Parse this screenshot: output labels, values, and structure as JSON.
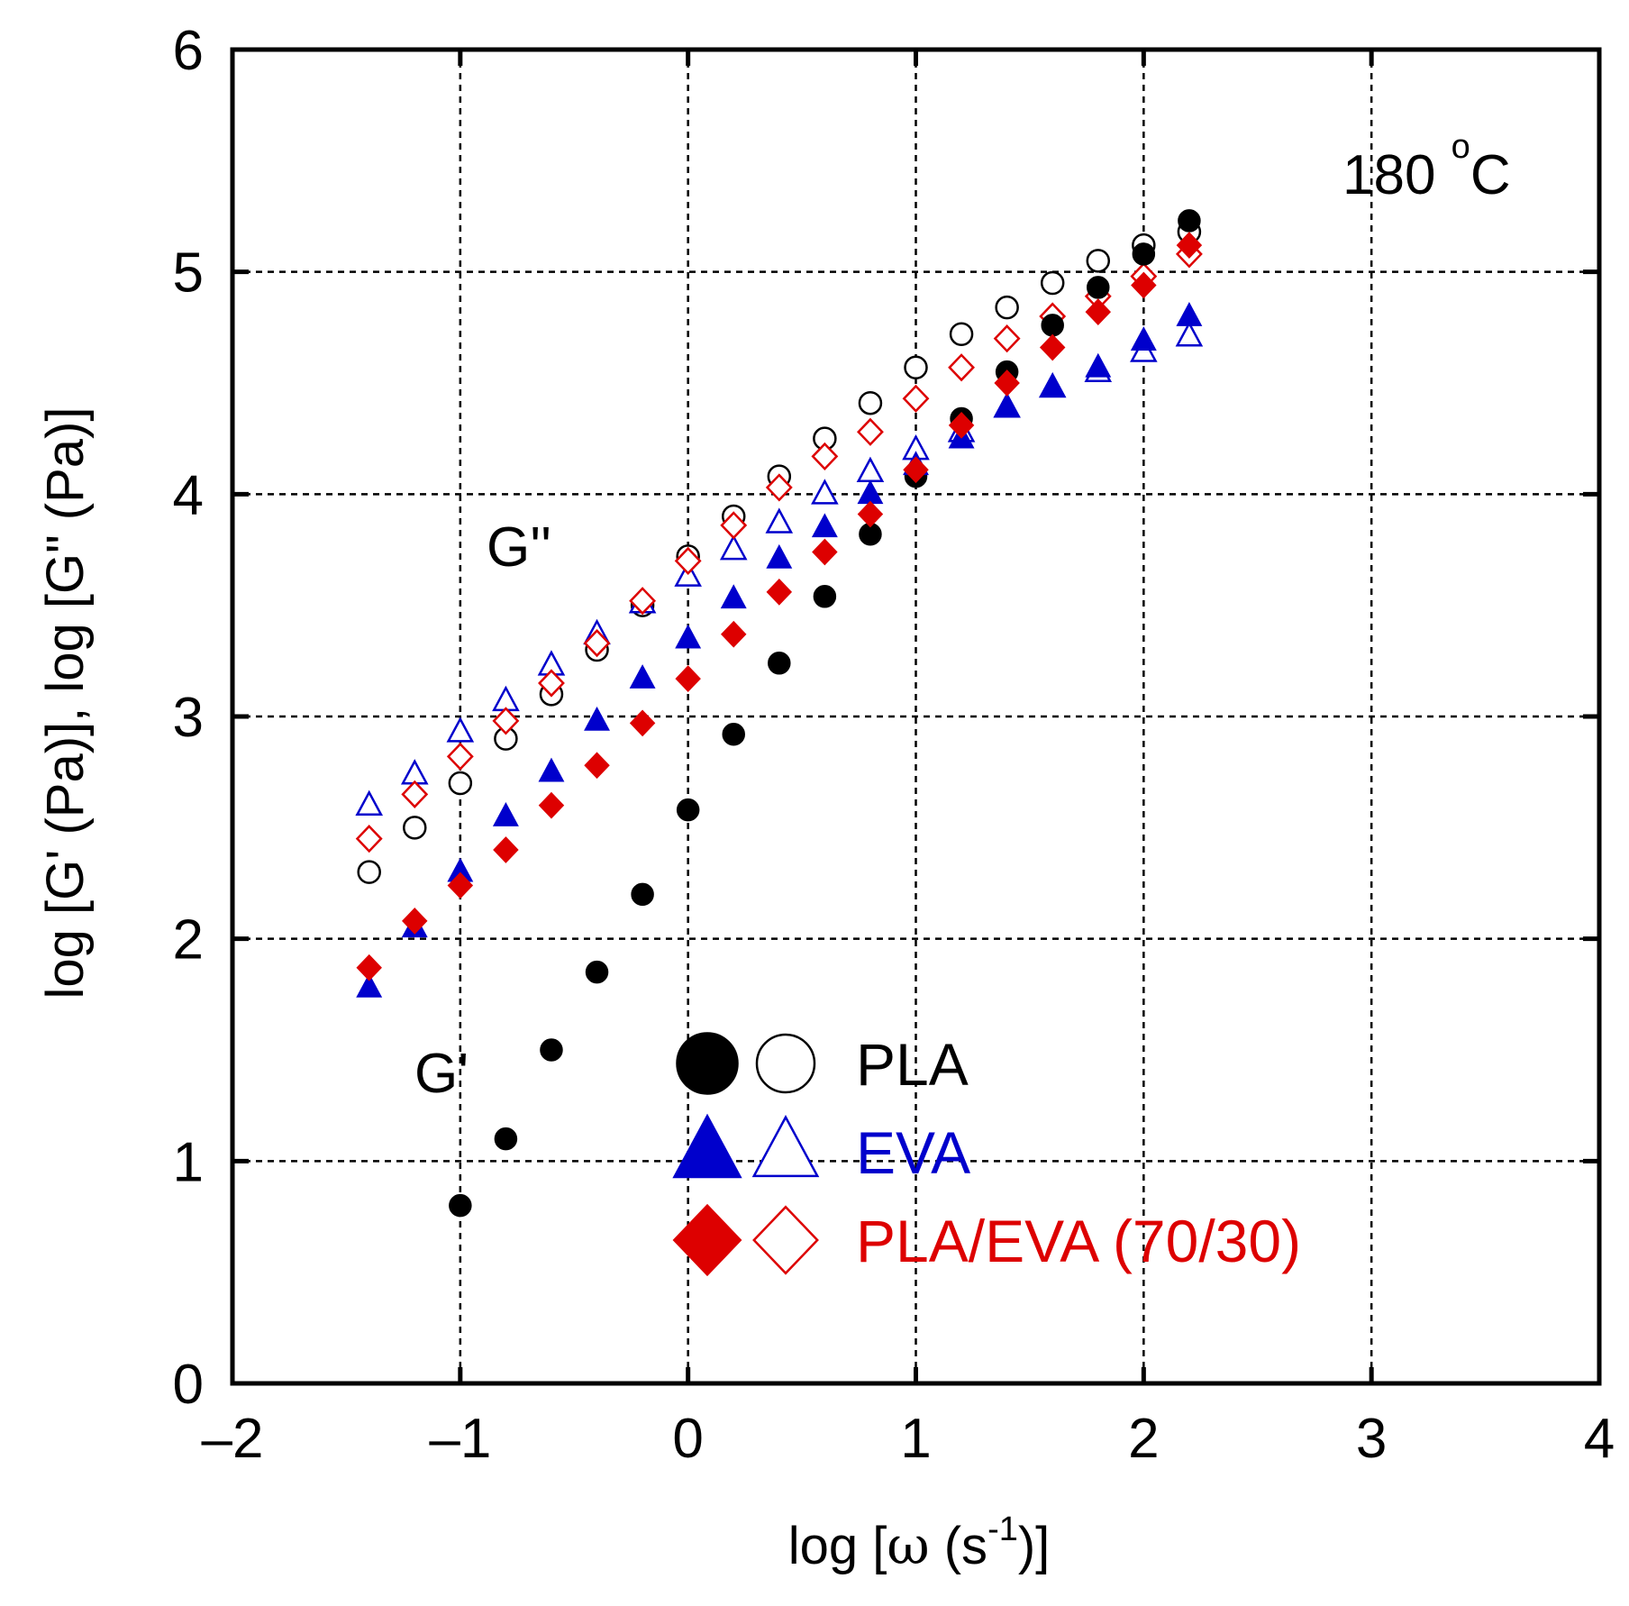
{
  "chart_data": {
    "type": "scatter",
    "title": "",
    "xlabel": {
      "prefix": "log [",
      "omega": "ω",
      "mid": " (s",
      "sup": "-1",
      "suffix": ")]"
    },
    "ylabel": "log [G' (Pa)], log [G\" (Pa)]",
    "xlim": [
      -2,
      4
    ],
    "ylim": [
      0,
      6
    ],
    "grid": true,
    "xticks": [
      -2,
      -1,
      0,
      1,
      2,
      3,
      4
    ],
    "xtick_labels": [
      "–2",
      "–1",
      "0",
      "1",
      "2",
      "3",
      "4"
    ],
    "yticks": [
      0,
      1,
      2,
      3,
      4,
      5,
      6
    ],
    "ytick_labels": [
      "0",
      "1",
      "2",
      "3",
      "4",
      "5",
      "6"
    ],
    "annotations": {
      "temperature": {
        "value": "180 ",
        "degree": "o",
        "unit": "C"
      },
      "g_double_prime": "G''",
      "g_prime": "G'"
    },
    "colors": {
      "PLA": "#000000",
      "EVA": "#0000cc",
      "PLA/EVA (70/30)": "#dd0000"
    },
    "x": [
      -1.4,
      -1.2,
      -1.0,
      -0.8,
      -0.6,
      -0.4,
      -0.2,
      0.0,
      0.2,
      0.4,
      0.6,
      0.8,
      1.0,
      1.2,
      1.4,
      1.6,
      1.8,
      2.0,
      2.2
    ],
    "series": [
      {
        "name": "PLA G'",
        "material": "PLA",
        "modulus": "G'",
        "marker": "circle",
        "filled": true,
        "x": [
          -1.0,
          -0.8,
          -0.6,
          -0.4,
          -0.2,
          0.0,
          0.2,
          0.4,
          0.6,
          0.8,
          1.0,
          1.2,
          1.4,
          1.6,
          1.8,
          2.0,
          2.2
        ],
        "values": [
          0.8,
          1.1,
          1.5,
          1.85,
          2.2,
          2.58,
          2.92,
          3.24,
          3.54,
          3.82,
          4.08,
          4.34,
          4.55,
          4.76,
          4.93,
          5.08,
          5.23
        ]
      },
      {
        "name": "PLA G''",
        "material": "PLA",
        "modulus": "G''",
        "marker": "circle",
        "filled": false,
        "x": [
          -1.4,
          -1.2,
          -1.0,
          -0.8,
          -0.6,
          -0.4,
          -0.2,
          0.0,
          0.2,
          0.4,
          0.6,
          0.8,
          1.0,
          1.2,
          1.4,
          1.6,
          1.8,
          2.0,
          2.2
        ],
        "values": [
          2.3,
          2.5,
          2.7,
          2.9,
          3.1,
          3.3,
          3.5,
          3.72,
          3.9,
          4.08,
          4.25,
          4.41,
          4.57,
          4.72,
          4.84,
          4.95,
          5.05,
          5.12,
          5.18
        ]
      },
      {
        "name": "EVA G'",
        "material": "EVA",
        "modulus": "G'",
        "marker": "triangle",
        "filled": true,
        "x": [
          -1.4,
          -1.2,
          -1.0,
          -0.8,
          -0.6,
          -0.4,
          -0.2,
          0.0,
          0.2,
          0.4,
          0.6,
          0.8,
          1.0,
          1.2,
          1.4,
          1.6,
          1.8,
          2.0,
          2.2
        ],
        "values": [
          1.78,
          2.05,
          2.3,
          2.55,
          2.75,
          2.98,
          3.17,
          3.35,
          3.53,
          3.71,
          3.85,
          4.0,
          4.13,
          4.25,
          4.39,
          4.48,
          4.57,
          4.69,
          4.8
        ]
      },
      {
        "name": "EVA G''",
        "material": "EVA",
        "modulus": "G''",
        "marker": "triangle",
        "filled": false,
        "x": [
          -1.4,
          -1.2,
          -1.0,
          -0.8,
          -0.6,
          -0.4,
          -0.2,
          0.0,
          0.2,
          0.4,
          0.6,
          0.8,
          1.0,
          1.2,
          1.4,
          1.6,
          1.8,
          2.0,
          2.2
        ],
        "values": [
          2.6,
          2.74,
          2.93,
          3.07,
          3.23,
          3.37,
          3.51,
          3.63,
          3.75,
          3.87,
          4.0,
          4.1,
          4.2,
          4.28,
          4.39,
          4.48,
          4.55,
          4.64,
          4.71
        ]
      },
      {
        "name": "PLA/EVA (70/30) G'",
        "material": "PLA/EVA (70/30)",
        "modulus": "G'",
        "marker": "diamond",
        "filled": true,
        "x": [
          -1.4,
          -1.2,
          -1.0,
          -0.8,
          -0.6,
          -0.4,
          -0.2,
          0.0,
          0.2,
          0.4,
          0.6,
          0.8,
          1.0,
          1.2,
          1.4,
          1.6,
          1.8,
          2.0,
          2.2
        ],
        "values": [
          1.87,
          2.08,
          2.24,
          2.4,
          2.6,
          2.78,
          2.97,
          3.17,
          3.37,
          3.56,
          3.74,
          3.91,
          4.11,
          4.31,
          4.5,
          4.66,
          4.82,
          4.94,
          5.12
        ]
      },
      {
        "name": "PLA/EVA (70/30) G''",
        "material": "PLA/EVA (70/30)",
        "modulus": "G''",
        "marker": "diamond",
        "filled": false,
        "x": [
          -1.4,
          -1.2,
          -1.0,
          -0.8,
          -0.6,
          -0.4,
          -0.2,
          0.0,
          0.2,
          0.4,
          0.6,
          0.8,
          1.0,
          1.2,
          1.4,
          1.6,
          1.8,
          2.0,
          2.2
        ],
        "values": [
          2.45,
          2.65,
          2.82,
          2.98,
          3.15,
          3.33,
          3.52,
          3.7,
          3.86,
          4.03,
          4.17,
          4.28,
          4.43,
          4.57,
          4.7,
          4.8,
          4.89,
          4.98,
          5.08
        ]
      }
    ],
    "legend": {
      "placement": "lower-center",
      "entries": [
        {
          "label": "PLA",
          "marker": "circle",
          "color": "#000000"
        },
        {
          "label": "EVA",
          "marker": "triangle",
          "color": "#0000cc"
        },
        {
          "label": "PLA/EVA (70/30)",
          "marker": "diamond",
          "color": "#dd0000"
        }
      ]
    }
  }
}
